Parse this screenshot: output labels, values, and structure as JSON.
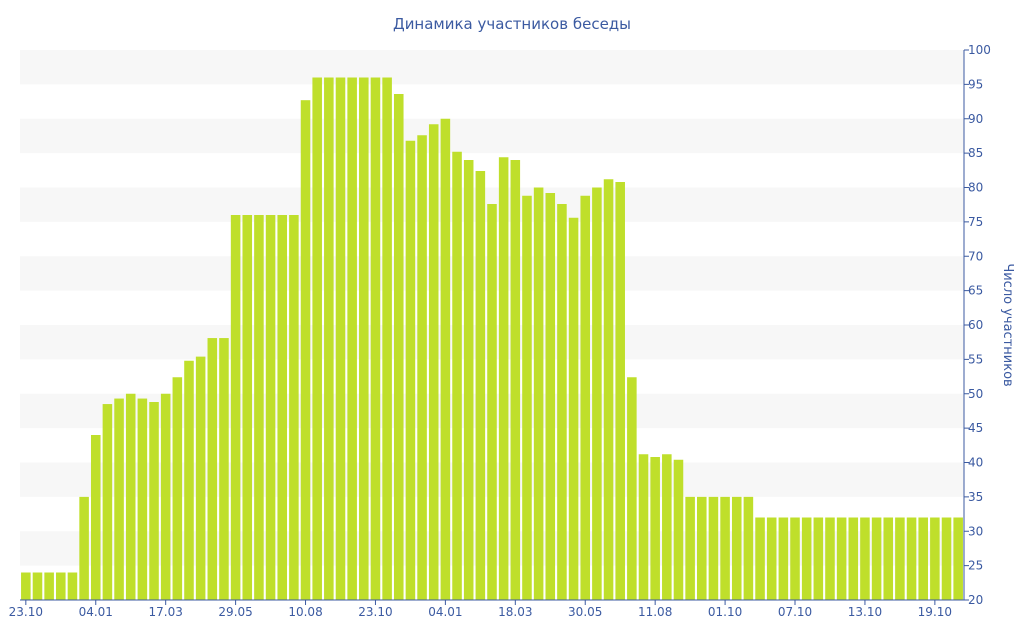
{
  "chart_data": {
    "type": "bar",
    "title": "Динамика участников беседы",
    "xlabel": "",
    "ylabel": "Число участников",
    "ylim": [
      20,
      100
    ],
    "ytick_step": 5,
    "yaxis_position": "right",
    "grid": "alternating horizontal bands",
    "legend": "none",
    "x_tick_labels": [
      "23.10",
      "04.01",
      "17.03",
      "29.05",
      "10.08",
      "23.10",
      "04.01",
      "18.03",
      "30.05",
      "11.08",
      "01.10",
      "07.10",
      "13.10",
      "19.10"
    ],
    "x_tick_indices": [
      0,
      6,
      12,
      18,
      24,
      30,
      36,
      42,
      48,
      54,
      60,
      66,
      72,
      78
    ],
    "colors": {
      "bar": "#bfdf2b",
      "band": "#f7f7f7",
      "axis": "#3b5aa1",
      "text": "#3b5aa1"
    },
    "values": [
      24,
      24,
      24,
      24,
      24,
      35,
      44,
      48.5,
      49.3,
      50,
      49.3,
      48.8,
      50,
      52.4,
      54.8,
      55.4,
      58.1,
      58.1,
      76,
      76,
      76,
      76,
      76,
      76,
      92.7,
      96,
      96,
      96,
      96,
      96,
      96,
      96,
      93.6,
      86.8,
      87.6,
      89.2,
      90,
      85.2,
      84,
      82.4,
      77.6,
      84.4,
      84,
      78.8,
      80,
      79.2,
      77.6,
      75.6,
      78.8,
      80,
      81.2,
      80.8,
      52.4,
      41.2,
      40.8,
      41.2,
      40.4,
      35,
      35,
      35,
      35,
      35,
      35,
      32,
      32,
      32,
      32,
      32,
      32,
      32,
      32,
      32,
      32,
      32,
      32,
      32,
      32,
      32,
      32,
      32,
      32
    ]
  }
}
